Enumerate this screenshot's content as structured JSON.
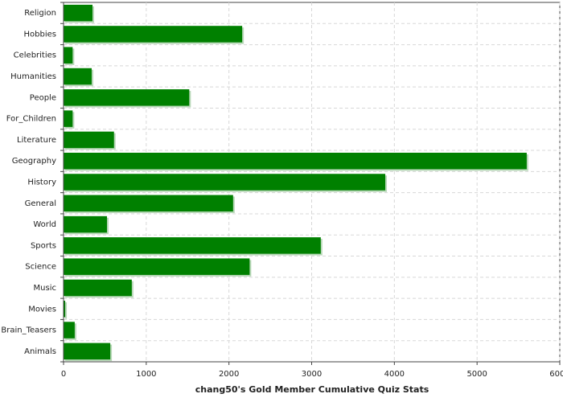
{
  "chart_data": {
    "type": "hbar",
    "x_label": "chang50's Gold Member Cumulative Quiz Stats",
    "categories": [
      "Religion",
      "Hobbies",
      "Celebrities",
      "Humanities",
      "People",
      "For_Children",
      "Literature",
      "Geography",
      "History",
      "General",
      "World",
      "Sports",
      "Science",
      "Music",
      "Movies",
      "Brain_Teasers",
      "Animals"
    ],
    "values": [
      350,
      2160,
      110,
      340,
      1520,
      110,
      610,
      5600,
      3890,
      2050,
      525,
      3110,
      2250,
      825,
      20,
      135,
      565
    ],
    "color": "#008000",
    "xlim": [
      0,
      6000
    ],
    "xticks": [
      0,
      1000,
      2000,
      3000,
      4000,
      5000,
      6000
    ],
    "grid": true
  }
}
